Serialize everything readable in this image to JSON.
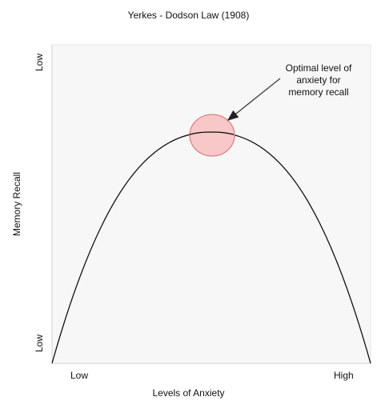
{
  "diagram": {
    "title": "Yerkes - Dodson Law (1908)",
    "y_axis": {
      "title": "Memory Recall",
      "top_label": "Low",
      "bottom_label": "Low"
    },
    "x_axis": {
      "title": "Levels of Anxiety",
      "left_label": "Low",
      "right_label": "High"
    },
    "annotation": {
      "line1": "Optimal level of",
      "line2": "anxiety for",
      "line3": "memory recall"
    },
    "colors": {
      "plot_background": "#f7f7f7",
      "curve": "#111111",
      "highlight_fill": "#f7bcbc",
      "highlight_stroke": "#d86a6a",
      "arrow": "#444444"
    }
  }
}
